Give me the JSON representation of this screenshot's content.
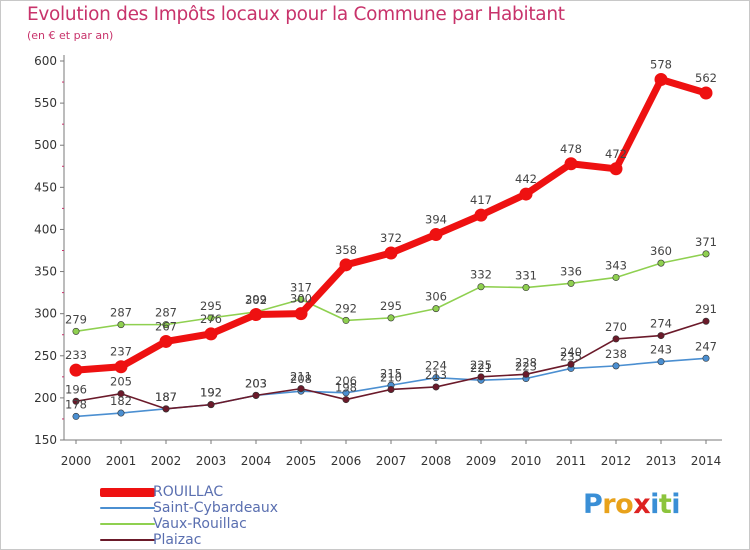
{
  "header": {
    "title": "Evolution des Impôts locaux pour la Commune par Habitant",
    "subtitle": "(en € et par an)"
  },
  "brand": {
    "logo_letters": [
      "P",
      "r",
      "o",
      "x",
      "i",
      "t",
      "i"
    ],
    "logo_colors": [
      "#3a8fd6",
      "#e8a21b",
      "#e8a21b",
      "#d22",
      "#3a8fd6",
      "#8cc43c",
      "#3a8fd6"
    ]
  },
  "chart_data": {
    "type": "line",
    "title": "Evolution des Impôts locaux pour la Commune par Habitant",
    "subtitle": "(en € et par an)",
    "x": [
      2000,
      2001,
      2002,
      2003,
      2004,
      2005,
      2006,
      2007,
      2008,
      2009,
      2010,
      2011,
      2012,
      2013,
      2014
    ],
    "ylim": [
      150,
      600
    ],
    "yticks": [
      150,
      200,
      250,
      300,
      350,
      400,
      450,
      500,
      550,
      600
    ],
    "grid": false,
    "legend_position": "bottom-left",
    "series": [
      {
        "name": "ROUILLAC",
        "color": "#ee1111",
        "values": [
          233,
          237,
          267,
          276,
          299,
          300,
          358,
          372,
          394,
          417,
          442,
          478,
          472,
          578,
          562
        ],
        "labels": [
          "233",
          "237",
          "267",
          "276",
          "299",
          "300",
          "358",
          "372",
          "394",
          "417",
          "442",
          "478",
          "472",
          "578",
          "562"
        ]
      },
      {
        "name": "Saint-Cybardeaux",
        "color": "#4b8fd1",
        "values": [
          178,
          182,
          187,
          192,
          203,
          208,
          206,
          215,
          224,
          221,
          223,
          235,
          238,
          243,
          247
        ],
        "labels": [
          "178",
          "182",
          "187",
          "192",
          "203",
          "208",
          "206",
          "215",
          "224",
          "221",
          "223",
          "235",
          "238",
          "243",
          "247"
        ]
      },
      {
        "name": "Vaux-Rouillac",
        "color": "#8fd050",
        "values": [
          279,
          287,
          287,
          295,
          302,
          317,
          292,
          295,
          306,
          332,
          331,
          336,
          343,
          360,
          371
        ],
        "labels": [
          "279",
          "287",
          "287",
          "295",
          "302",
          "317",
          "292",
          "295",
          "306",
          "332",
          "331",
          "336",
          "343",
          "360",
          "371"
        ]
      },
      {
        "name": "Plaizac",
        "color": "#6b1a2a",
        "values": [
          196,
          205,
          187,
          192,
          203,
          211,
          198,
          210,
          213,
          225,
          228,
          240,
          270,
          274,
          291
        ],
        "labels": [
          "196",
          "205",
          "187",
          "192",
          "203",
          "211",
          "198",
          "210",
          "213",
          "225",
          "228",
          "240",
          "270",
          "274",
          "291"
        ]
      }
    ]
  }
}
